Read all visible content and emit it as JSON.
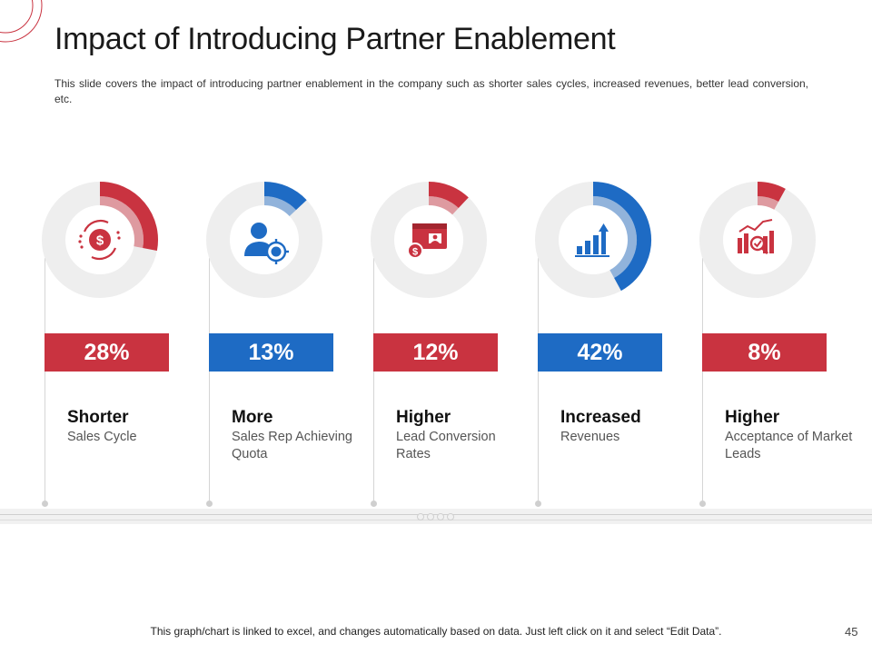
{
  "slide": {
    "title": "Impact of Introducing Partner Enablement",
    "subtitle": "This slide covers the impact of introducing partner enablement in the company such as shorter sales cycles, increased revenues,  better lead conversion,  etc.",
    "footnote": "This graph/chart is linked to excel, and changes automatically based on data. Just left click on it and select “Edit Data”.",
    "page_number": "45"
  },
  "colors": {
    "red": "#c93340",
    "blue": "#1e6bc4",
    "ring_bg": "#eeeeee"
  },
  "chart_data": {
    "type": "pie",
    "title": "Impact of Introducing Partner Enablement",
    "categories": [
      "Shorter Sales Cycle",
      "More Sales Rep Achieving Quota",
      "Higher Lead Conversion Rates",
      "Increased Revenues",
      "Higher Acceptance of Market Leads"
    ],
    "values": [
      28,
      13,
      12,
      42,
      8
    ],
    "unit": "%",
    "items": [
      {
        "value": 28,
        "label": "28%",
        "title": "Shorter",
        "subtitle": "Sales Cycle",
        "color": "red",
        "icon": "dollar-cycle-icon"
      },
      {
        "value": 13,
        "label": "13%",
        "title": "More",
        "subtitle": "Sales Rep Achieving Quota",
        "color": "blue",
        "icon": "sales-rep-target-icon"
      },
      {
        "value": 12,
        "label": "12%",
        "title": "Higher",
        "subtitle": "Lead Conversion Rates",
        "color": "red",
        "icon": "lead-conversion-icon"
      },
      {
        "value": 42,
        "label": "42%",
        "title": "Increased",
        "subtitle": "Revenues",
        "color": "blue",
        "icon": "revenue-growth-icon"
      },
      {
        "value": 8,
        "label": "8%",
        "title": "Higher",
        "subtitle": "Acceptance of Market Leads",
        "color": "red",
        "icon": "market-analysis-icon"
      }
    ]
  }
}
